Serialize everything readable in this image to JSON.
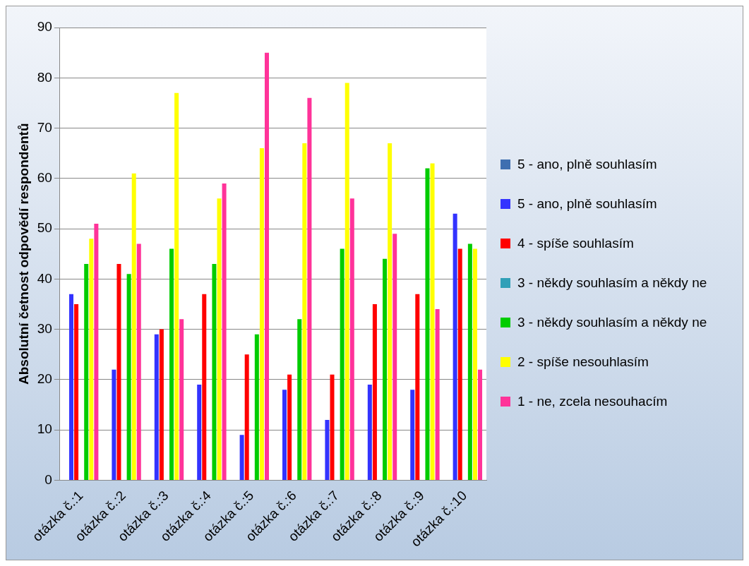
{
  "chart_data": {
    "type": "bar",
    "ylabel": "Absolutní četnost odpovědí respondentů",
    "categories": [
      "otázka č.:1",
      "otázka č.:2",
      "otázka č.:3",
      "otázka č.:4",
      "otázka č.:5",
      "otázka č.:6",
      "otázka č.:7",
      "otázka č.:8",
      "otázka č.:9",
      "otázka č.:10"
    ],
    "series": [
      {
        "name": "5 - ano, plně souhlasím",
        "color": "#3f6fb0",
        "values": [
          null,
          null,
          null,
          null,
          null,
          null,
          null,
          null,
          null,
          null
        ]
      },
      {
        "name": "5 - ano, plně souhlasím",
        "color": "#3333ff",
        "values": [
          37,
          22,
          29,
          19,
          9,
          18,
          12,
          19,
          18,
          53
        ]
      },
      {
        "name": "4 - spíše souhlasím",
        "color": "#ff0000",
        "values": [
          35,
          43,
          30,
          37,
          25,
          21,
          21,
          35,
          37,
          46
        ]
      },
      {
        "name": "3 - někdy souhlasím a někdy ne",
        "color": "#31a0b8",
        "values": [
          null,
          null,
          null,
          null,
          null,
          null,
          null,
          null,
          null,
          null
        ]
      },
      {
        "name": "3 - někdy souhlasím a někdy ne",
        "color": "#00cc00",
        "values": [
          43,
          41,
          46,
          43,
          29,
          32,
          46,
          44,
          62,
          47
        ]
      },
      {
        "name": "2 - spíše nesouhlasím",
        "color": "#ffff00",
        "values": [
          48,
          61,
          77,
          56,
          66,
          67,
          79,
          67,
          63,
          46
        ]
      },
      {
        "name": "1 - ne, zcela nesouhacím",
        "color": "#ff3399",
        "values": [
          51,
          47,
          32,
          59,
          85,
          76,
          56,
          49,
          34,
          22
        ]
      }
    ],
    "ylim": [
      0,
      90
    ],
    "yticks": [
      0,
      10,
      20,
      30,
      40,
      50,
      60,
      70,
      80,
      90
    ],
    "grid": "y",
    "legend": "right"
  }
}
